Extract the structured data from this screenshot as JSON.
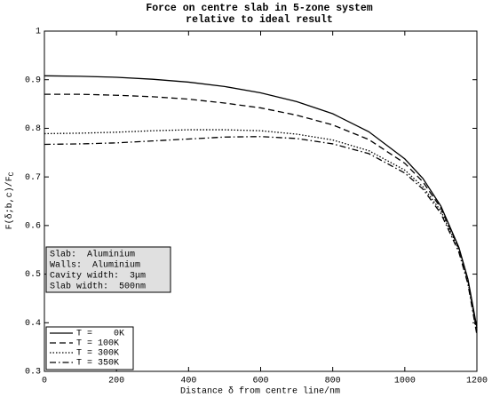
{
  "chart_data": {
    "type": "line",
    "title": [
      "Force on centre slab in 5-zone system",
      "relative to ideal result"
    ],
    "xlabel": "Distance δ from centre line/nm",
    "ylabel": "F(δ;b,c)/F",
    "ylabel_subscript": "C",
    "x": [
      0,
      100,
      200,
      300,
      400,
      500,
      600,
      700,
      800,
      900,
      1000,
      1050,
      1100,
      1150,
      1175,
      1200
    ],
    "series": [
      {
        "name": "T =    0K",
        "color": "#000000",
        "dash": "solid",
        "values": [
          0.908,
          0.907,
          0.905,
          0.901,
          0.895,
          0.886,
          0.873,
          0.855,
          0.83,
          0.793,
          0.737,
          0.697,
          0.64,
          0.555,
          0.49,
          0.39
        ]
      },
      {
        "name": "T = 100K",
        "color": "#000000",
        "dash": "dashed",
        "values": [
          0.87,
          0.87,
          0.868,
          0.865,
          0.86,
          0.852,
          0.842,
          0.827,
          0.807,
          0.777,
          0.728,
          0.69,
          0.636,
          0.553,
          0.488,
          0.385
        ]
      },
      {
        "name": "T = 300K",
        "color": "#000000",
        "dash": "dotted",
        "values": [
          0.789,
          0.79,
          0.792,
          0.795,
          0.797,
          0.797,
          0.795,
          0.788,
          0.776,
          0.754,
          0.714,
          0.68,
          0.63,
          0.55,
          0.485,
          0.38
        ]
      },
      {
        "name": "T = 350K",
        "color": "#000000",
        "dash": "dashdot",
        "values": [
          0.767,
          0.768,
          0.77,
          0.774,
          0.778,
          0.782,
          0.783,
          0.779,
          0.768,
          0.748,
          0.708,
          0.675,
          0.625,
          0.545,
          0.48,
          0.375
        ]
      }
    ],
    "annotation": [
      "Slab:  Aluminium",
      "Walls:  Aluminium",
      "Cavity width:  3μm",
      "Slab width:  500nm"
    ],
    "xlim": [
      0,
      1200
    ],
    "xticks": [
      0,
      200,
      400,
      600,
      800,
      1000,
      1200
    ],
    "ylim": [
      0.3,
      1
    ],
    "yticks": [
      0.3,
      0.4,
      0.5,
      0.6,
      0.7,
      0.8,
      0.9,
      1
    ],
    "grid": false,
    "legend_position": "lower left"
  }
}
